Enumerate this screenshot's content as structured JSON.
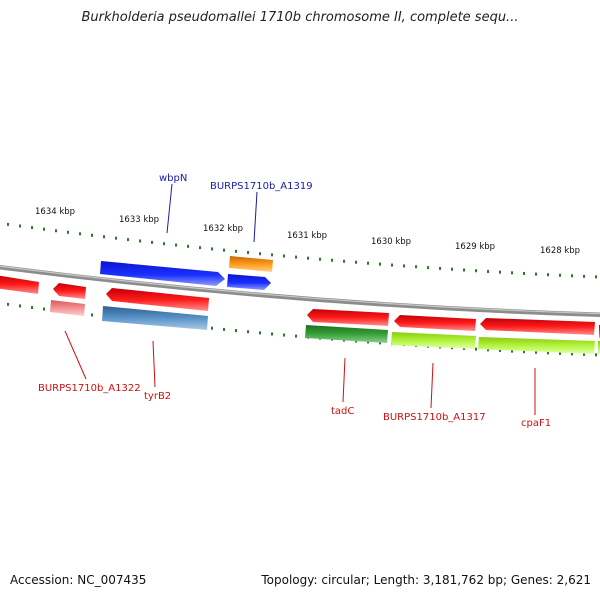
{
  "title": "Burkholderia pseudomallei 1710b chromosome II, complete sequ...",
  "footer": {
    "accession": "Accession: NC_007435",
    "topology": "Topology: circular; Length: 3,181,762 bp; Genes: 2,621"
  },
  "colors": {
    "backbone": "#8c8c8c",
    "tick": "#2a7a2a",
    "forward_gene": "#1020e8",
    "forward_label": "#1a1aaa",
    "reverse_gene": "#e8121a",
    "reverse_label": "#cc1111",
    "orange_gene": "#f08a10",
    "steelblue_gene": "#4f85b8",
    "darkgreen_gene": "#2f8a2f",
    "lightgreen_gene": "#a4ea2e",
    "pink_gene": "#f08080"
  },
  "ticks": [
    {
      "label": "1634 kbp"
    },
    {
      "label": "1633 kbp"
    },
    {
      "label": "1632 kbp"
    },
    {
      "label": "1631 kbp"
    },
    {
      "label": "1630 kbp"
    },
    {
      "label": "1629 kbp"
    },
    {
      "label": "1628 kbp"
    }
  ],
  "gene_labels": [
    {
      "text": "wbpN",
      "strand": "forward"
    },
    {
      "text": "BURPS1710b_A1319",
      "strand": "forward"
    },
    {
      "text": "BURPS1710b_A1322",
      "strand": "reverse"
    },
    {
      "text": "tyrB2",
      "strand": "reverse"
    },
    {
      "text": "tadC",
      "strand": "reverse"
    },
    {
      "text": "BURPS1710b_A1317",
      "strand": "reverse"
    },
    {
      "text": "cpaF1",
      "strand": "reverse"
    }
  ]
}
